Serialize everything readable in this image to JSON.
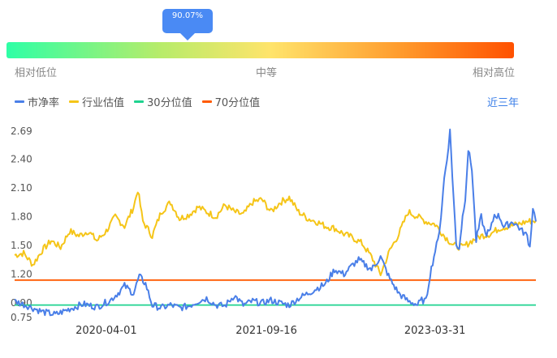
{
  "indicator": {
    "value_label": "90.07%",
    "percentile": 0.9007
  },
  "scale_labels": {
    "low": "相对低位",
    "mid": "中等",
    "high": "相对高位"
  },
  "range_link": "近三年",
  "chart_data": {
    "type": "line",
    "legend": [
      {
        "name": "市净率",
        "color": "#4a7fe8"
      },
      {
        "name": "行业估值",
        "color": "#f5c518"
      },
      {
        "name": "30分位值",
        "color": "#1fd38f"
      },
      {
        "name": "70分位值",
        "color": "#ff5a00"
      }
    ],
    "yticks": [
      "2.69",
      "2.40",
      "2.10",
      "1.80",
      "1.50",
      "1.20",
      "0.90",
      "0.75"
    ],
    "ylim": [
      0.75,
      2.69
    ],
    "xlim": [
      "2019-06-01",
      "2024-03-01"
    ],
    "xticks": [
      "2020-04-01",
      "2021-09-16",
      "2023-03-31"
    ],
    "series": [
      {
        "name": "市净率",
        "color": "#4a7fe8",
        "x": [
          "2019-06-01",
          "2019-07-15",
          "2019-09-01",
          "2019-10-15",
          "2019-12-01",
          "2020-01-15",
          "2020-03-01",
          "2020-04-15",
          "2020-05-15",
          "2020-06-01",
          "2020-07-01",
          "2020-07-20",
          "2020-08-10",
          "2020-09-01",
          "2020-10-01",
          "2020-11-01",
          "2020-12-01",
          "2021-01-01",
          "2021-02-01",
          "2021-03-01",
          "2021-04-01",
          "2021-05-01",
          "2021-06-01",
          "2021-07-01",
          "2021-08-01",
          "2021-09-01",
          "2021-10-01",
          "2021-11-01",
          "2021-12-01",
          "2022-01-01",
          "2022-02-01",
          "2022-03-01",
          "2022-04-01",
          "2022-05-01",
          "2022-06-01",
          "2022-07-01",
          "2022-07-20",
          "2022-08-10",
          "2022-09-01",
          "2022-10-01",
          "2022-11-01",
          "2022-12-01",
          "2023-01-01",
          "2023-01-20",
          "2023-02-01",
          "2023-02-15",
          "2023-03-01",
          "2023-03-15",
          "2023-04-01",
          "2023-04-10",
          "2023-04-20",
          "2023-05-01",
          "2023-05-10",
          "2023-05-20",
          "2023-06-01",
          "2023-06-10",
          "2023-06-20",
          "2023-07-01",
          "2023-07-10",
          "2023-07-20",
          "2023-08-01",
          "2023-08-15",
          "2023-09-01",
          "2023-09-15",
          "2023-10-01",
          "2023-10-15",
          "2023-11-01",
          "2023-11-15",
          "2023-12-01",
          "2023-12-15",
          "2024-01-01",
          "2024-01-15",
          "2024-02-01",
          "2024-02-10",
          "2024-02-20",
          "2024-03-01"
        ],
        "values": [
          0.92,
          0.87,
          0.81,
          0.78,
          0.84,
          0.89,
          0.86,
          0.93,
          1.02,
          1.08,
          1.0,
          1.18,
          1.1,
          0.88,
          0.85,
          0.88,
          0.85,
          0.87,
          0.92,
          0.95,
          0.88,
          0.87,
          0.98,
          0.88,
          0.92,
          0.9,
          0.93,
          0.9,
          0.88,
          0.95,
          1.0,
          1.05,
          1.1,
          1.25,
          1.2,
          1.3,
          1.35,
          1.3,
          1.25,
          1.38,
          1.15,
          1.0,
          0.92,
          0.9,
          0.88,
          0.93,
          0.92,
          1.2,
          1.45,
          1.55,
          1.8,
          2.2,
          2.4,
          2.69,
          2.0,
          1.5,
          1.48,
          1.8,
          2.0,
          2.5,
          2.3,
          1.55,
          1.8,
          1.62,
          1.65,
          1.82,
          1.8,
          1.7,
          1.72,
          1.75,
          1.7,
          1.65,
          1.6,
          1.48,
          1.9,
          1.75
        ]
      },
      {
        "name": "行业估值",
        "color": "#f5c518",
        "x": [
          "2019-06-01",
          "2019-07-01",
          "2019-08-01",
          "2019-09-01",
          "2019-10-01",
          "2019-11-01",
          "2019-12-01",
          "2020-01-01",
          "2020-02-01",
          "2020-03-01",
          "2020-04-01",
          "2020-05-01",
          "2020-06-01",
          "2020-07-01",
          "2020-07-15",
          "2020-08-01",
          "2020-09-01",
          "2020-10-01",
          "2020-11-01",
          "2020-12-01",
          "2021-01-01",
          "2021-02-01",
          "2021-03-01",
          "2021-04-01",
          "2021-05-01",
          "2021-06-01",
          "2021-07-01",
          "2021-08-01",
          "2021-09-01",
          "2021-10-01",
          "2021-11-01",
          "2021-12-01",
          "2022-01-01",
          "2022-02-01",
          "2022-03-01",
          "2022-04-01",
          "2022-05-01",
          "2022-06-01",
          "2022-07-01",
          "2022-08-01",
          "2022-09-01",
          "2022-10-01",
          "2022-11-01",
          "2022-12-01",
          "2023-01-01",
          "2023-02-01",
          "2023-03-01",
          "2023-04-01",
          "2023-05-01",
          "2023-06-01",
          "2023-07-01",
          "2023-08-01",
          "2023-09-01",
          "2023-10-01",
          "2023-11-01",
          "2023-12-01",
          "2024-01-01",
          "2024-02-01",
          "2024-03-01"
        ],
        "values": [
          1.4,
          1.42,
          1.3,
          1.45,
          1.55,
          1.48,
          1.65,
          1.6,
          1.65,
          1.55,
          1.65,
          1.8,
          1.7,
          1.9,
          2.08,
          1.75,
          1.6,
          1.85,
          1.95,
          1.78,
          1.82,
          1.9,
          1.85,
          1.8,
          1.92,
          1.85,
          1.82,
          1.95,
          1.98,
          1.85,
          1.95,
          2.0,
          1.85,
          1.78,
          1.75,
          1.7,
          1.68,
          1.62,
          1.58,
          1.52,
          1.38,
          1.2,
          1.45,
          1.62,
          1.85,
          1.8,
          1.75,
          1.72,
          1.6,
          1.5,
          1.48,
          1.55,
          1.6,
          1.62,
          1.68,
          1.7,
          1.72,
          1.75,
          1.76
        ]
      },
      {
        "name": "30分位值",
        "color": "#1fd38f",
        "x": [
          "2019-06-01",
          "2024-03-01"
        ],
        "values": [
          0.88,
          0.88
        ]
      },
      {
        "name": "70分位值",
        "color": "#ff5a00",
        "x": [
          "2019-06-01",
          "2024-03-01"
        ],
        "values": [
          1.14,
          1.14
        ]
      }
    ]
  }
}
